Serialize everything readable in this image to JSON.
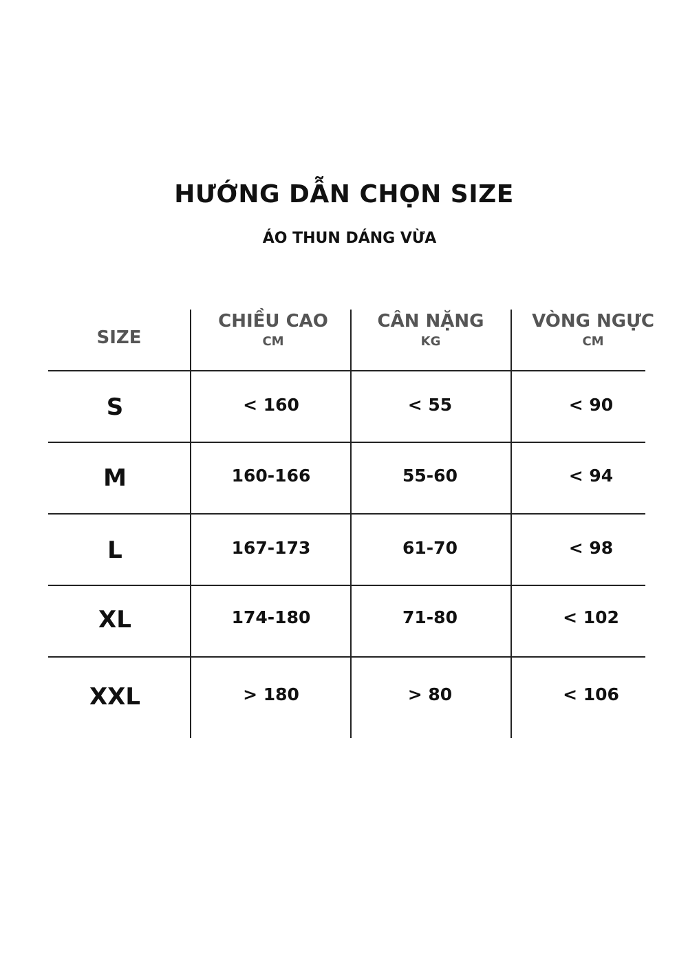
{
  "title": "HƯỚNG DẪN CHỌN SIZE",
  "subtitle": "ÁO THUN DÁNG VỪA",
  "table": {
    "headers": [
      {
        "label": "SIZE",
        "unit": ""
      },
      {
        "label": "CHIỀU CAO",
        "unit": "CM"
      },
      {
        "label": "CÂN NẶNG",
        "unit": "KG"
      },
      {
        "label": "VÒNG NGỰC",
        "unit": "CM"
      }
    ],
    "rows": [
      [
        "S",
        "< 160",
        "< 55",
        "< 90"
      ],
      [
        "M",
        "160-166",
        "55-60",
        "< 94"
      ],
      [
        "L",
        "167-173",
        "61-70",
        "< 98"
      ],
      [
        "XL",
        "174-180",
        "71-80",
        "< 102"
      ],
      [
        "XXL",
        "> 180",
        "> 80",
        "< 106"
      ]
    ]
  }
}
